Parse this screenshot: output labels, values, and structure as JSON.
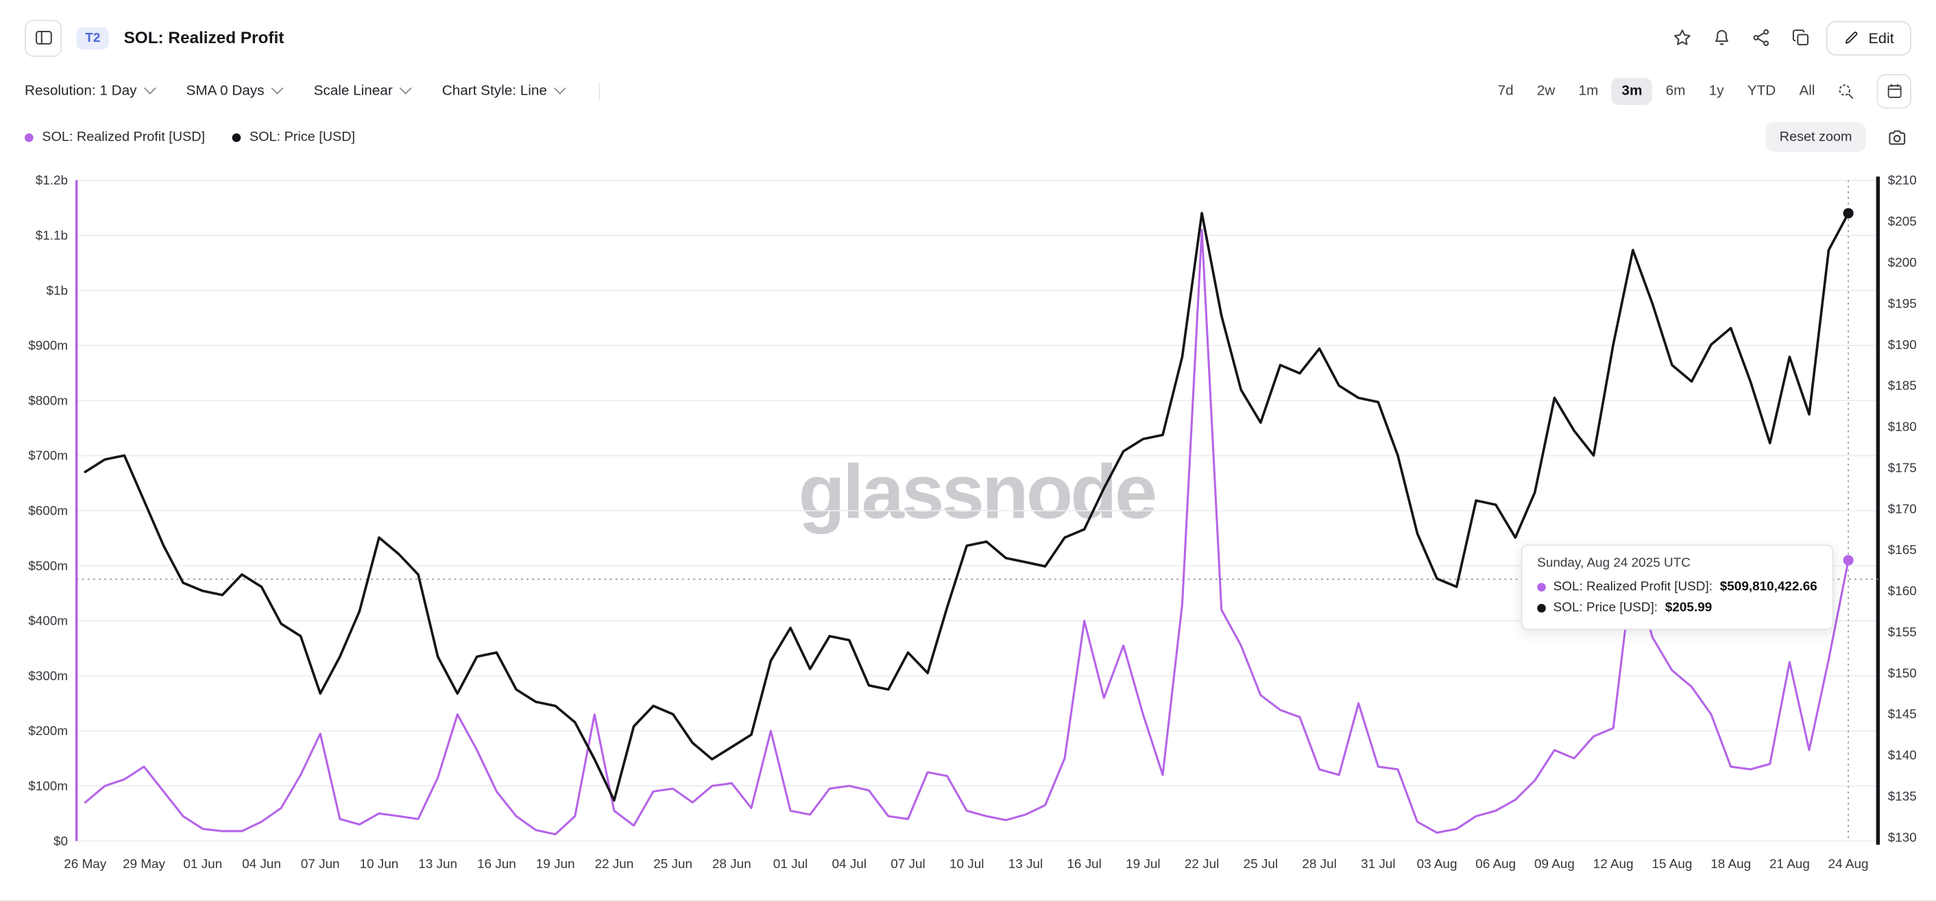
{
  "header": {
    "badge": "T2",
    "title": "SOL: Realized Profit",
    "edit_label": "Edit"
  },
  "toolbar": {
    "dropdowns": [
      {
        "id": "resolution",
        "label": "Resolution: 1 Day"
      },
      {
        "id": "sma",
        "label": "SMA 0 Days"
      },
      {
        "id": "scale",
        "label": "Scale Linear"
      },
      {
        "id": "chart-style",
        "label": "Chart Style: Line"
      }
    ],
    "ranges": [
      "7d",
      "2w",
      "1m",
      "3m",
      "6m",
      "1y",
      "YTD",
      "All"
    ],
    "active_range": "3m"
  },
  "legend": [
    {
      "label": "SOL: Realized Profit [USD]",
      "color": "#b564e8"
    },
    {
      "label": "SOL: Price [USD]",
      "color": "#141419"
    }
  ],
  "reset_zoom_label": "Reset zoom",
  "watermark": "glassnode",
  "tooltip": {
    "date": "Sunday, Aug 24 2025 UTC",
    "rows": [
      {
        "label": "SOL: Realized Profit [USD]:",
        "value": "$509,810,422.66",
        "color": "#b564e8"
      },
      {
        "label": "SOL: Price [USD]:",
        "value": "$205.99",
        "color": "#141419"
      }
    ]
  },
  "chart_data": {
    "type": "line",
    "title": "SOL: Realized Profit",
    "grid": true,
    "legend_position": "top-left",
    "dates": [
      "2025-05-26",
      "2025-05-27",
      "2025-05-28",
      "2025-05-29",
      "2025-05-30",
      "2025-05-31",
      "2025-06-01",
      "2025-06-02",
      "2025-06-03",
      "2025-06-04",
      "2025-06-05",
      "2025-06-06",
      "2025-06-07",
      "2025-06-08",
      "2025-06-09",
      "2025-06-10",
      "2025-06-11",
      "2025-06-12",
      "2025-06-13",
      "2025-06-14",
      "2025-06-15",
      "2025-06-16",
      "2025-06-17",
      "2025-06-18",
      "2025-06-19",
      "2025-06-20",
      "2025-06-21",
      "2025-06-22",
      "2025-06-23",
      "2025-06-24",
      "2025-06-25",
      "2025-06-26",
      "2025-06-27",
      "2025-06-28",
      "2025-06-29",
      "2025-06-30",
      "2025-07-01",
      "2025-07-02",
      "2025-07-03",
      "2025-07-04",
      "2025-07-05",
      "2025-07-06",
      "2025-07-07",
      "2025-07-08",
      "2025-07-09",
      "2025-07-10",
      "2025-07-11",
      "2025-07-12",
      "2025-07-13",
      "2025-07-14",
      "2025-07-15",
      "2025-07-16",
      "2025-07-17",
      "2025-07-18",
      "2025-07-19",
      "2025-07-20",
      "2025-07-21",
      "2025-07-22",
      "2025-07-23",
      "2025-07-24",
      "2025-07-25",
      "2025-07-26",
      "2025-07-27",
      "2025-07-28",
      "2025-07-29",
      "2025-07-30",
      "2025-07-31",
      "2025-08-01",
      "2025-08-02",
      "2025-08-03",
      "2025-08-04",
      "2025-08-05",
      "2025-08-06",
      "2025-08-07",
      "2025-08-08",
      "2025-08-09",
      "2025-08-10",
      "2025-08-11",
      "2025-08-12",
      "2025-08-13",
      "2025-08-14",
      "2025-08-15",
      "2025-08-16",
      "2025-08-17",
      "2025-08-18",
      "2025-08-19",
      "2025-08-20",
      "2025-08-21",
      "2025-08-22",
      "2025-08-23",
      "2025-08-24"
    ],
    "x_tick_labels": [
      "26 May",
      "29 May",
      "01 Jun",
      "04 Jun",
      "07 Jun",
      "10 Jun",
      "13 Jun",
      "16 Jun",
      "19 Jun",
      "22 Jun",
      "25 Jun",
      "28 Jun",
      "01 Jul",
      "04 Jul",
      "07 Jul",
      "10 Jul",
      "13 Jul",
      "16 Jul",
      "19 Jul",
      "22 Jul",
      "25 Jul",
      "28 Jul",
      "31 Jul",
      "03 Aug",
      "06 Aug",
      "09 Aug",
      "12 Aug",
      "15 Aug",
      "18 Aug",
      "21 Aug",
      "24 Aug"
    ],
    "left_axis": {
      "label": "SOL: Realized Profit [USD]",
      "min": 0,
      "max": 1200,
      "unit": "million USD",
      "tick_labels": [
        "$0",
        "$100m",
        "$200m",
        "$300m",
        "$400m",
        "$500m",
        "$600m",
        "$700m",
        "$800m",
        "$900m",
        "$1b",
        "$1.1b",
        "$1.2b"
      ]
    },
    "right_axis": {
      "label": "SOL: Price [USD]",
      "min": 130,
      "max": 210,
      "unit": "USD",
      "tick_labels": [
        "$130",
        "$135",
        "$140",
        "$145",
        "$150",
        "$155",
        "$160",
        "$165",
        "$170",
        "$175",
        "$180",
        "$185",
        "$190",
        "$195",
        "$200",
        "$205",
        "$210"
      ]
    },
    "series": [
      {
        "name": "SOL: Realized Profit [USD]",
        "axis": "left",
        "color": "#b564e8",
        "unit": "million USD (estimated from chart)",
        "values": [
          70,
          100,
          112,
          135,
          90,
          45,
          22,
          18,
          18,
          35,
          60,
          120,
          195,
          40,
          30,
          50,
          45,
          40,
          115,
          230,
          165,
          90,
          45,
          20,
          12,
          45,
          230,
          55,
          28,
          90,
          95,
          70,
          100,
          105,
          60,
          200,
          55,
          48,
          95,
          100,
          92,
          45,
          40,
          125,
          118,
          55,
          45,
          38,
          48,
          65,
          150,
          400,
          260,
          355,
          230,
          120,
          430,
          1110,
          420,
          355,
          265,
          238,
          225,
          130,
          120,
          250,
          135,
          130,
          35,
          15,
          22,
          45,
          55,
          75,
          110,
          165,
          150,
          190,
          205,
          500,
          370,
          310,
          280,
          230,
          135,
          130,
          140,
          325,
          165,
          330,
          509.81
        ]
      },
      {
        "name": "SOL: Price [USD]",
        "axis": "right",
        "color": "#141419",
        "unit": "USD (estimated from chart)",
        "values": [
          174.5,
          176,
          176.5,
          171,
          165.5,
          161,
          160,
          159.5,
          162,
          160.5,
          156,
          154.5,
          147.5,
          152,
          157.5,
          166.5,
          164.5,
          162,
          152,
          147.5,
          152,
          152.5,
          148,
          146.5,
          146,
          144,
          139.5,
          134.5,
          143.5,
          146,
          145,
          141.5,
          139.5,
          141,
          142.5,
          151.5,
          155.5,
          150.5,
          154.5,
          154,
          148.5,
          148,
          152.5,
          150,
          158,
          165.5,
          166,
          164,
          163.5,
          163,
          166.5,
          167.5,
          172.5,
          177,
          178.5,
          179,
          188.5,
          206,
          193.5,
          184.5,
          180.5,
          187.5,
          186.5,
          189.5,
          185,
          183.5,
          183,
          176.5,
          167,
          161.5,
          160.5,
          171,
          170.5,
          166.5,
          172,
          183.5,
          179.5,
          176.5,
          190,
          201.5,
          195,
          187.5,
          185.5,
          190,
          192,
          185.5,
          178,
          188.5,
          181.5,
          201.5,
          205.99
        ]
      }
    ],
    "crosshair": {
      "x_date": "2025-08-24",
      "left_axis_value_m": 476
    }
  }
}
